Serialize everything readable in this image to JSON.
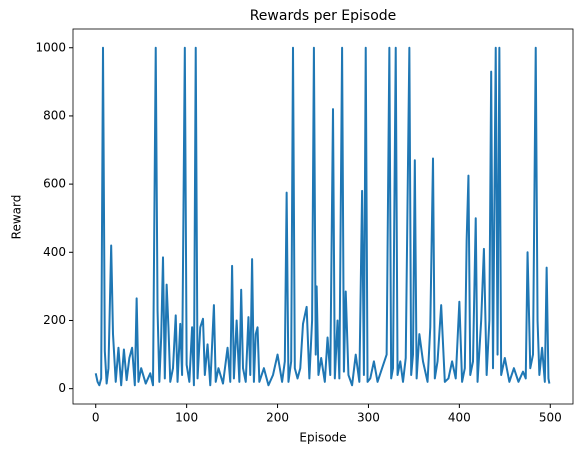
{
  "chart_data": {
    "type": "line",
    "title": "Rewards per Episode",
    "x_label": "Episode",
    "y_label": "Reward",
    "x": [
      0,
      2,
      4,
      6,
      8,
      10,
      12,
      14,
      17,
      19,
      22,
      25,
      28,
      31,
      34,
      37,
      40,
      43,
      45,
      47,
      50,
      55,
      60,
      63,
      66,
      68,
      70,
      72,
      74,
      76,
      78,
      80,
      82,
      85,
      88,
      90,
      93,
      95,
      98,
      100,
      103,
      106,
      108,
      110,
      112,
      115,
      118,
      120,
      123,
      126,
      130,
      132,
      135,
      140,
      145,
      148,
      150,
      152,
      155,
      158,
      160,
      162,
      165,
      168,
      170,
      172,
      174,
      176,
      178,
      180,
      185,
      190,
      195,
      200,
      205,
      208,
      210,
      212,
      215,
      217,
      219,
      222,
      225,
      228,
      232,
      235,
      238,
      240,
      242,
      243,
      245,
      248,
      252,
      255,
      258,
      261,
      263,
      266,
      268,
      271,
      273,
      275,
      278,
      282,
      286,
      290,
      293,
      295,
      297,
      299,
      302,
      306,
      310,
      315,
      320,
      323,
      325,
      327,
      330,
      332,
      335,
      338,
      341,
      345,
      347,
      349,
      351,
      353,
      356,
      360,
      365,
      368,
      371,
      373,
      376,
      380,
      384,
      388,
      392,
      396,
      400,
      403,
      406,
      408,
      410,
      412,
      415,
      418,
      420,
      424,
      427,
      430,
      433,
      435,
      437,
      440,
      442,
      444,
      446,
      450,
      455,
      460,
      465,
      470,
      473,
      475,
      478,
      481,
      484,
      486,
      488,
      491,
      494,
      496,
      498,
      499
    ],
    "series": [
      {
        "name": "Reward",
        "color": "#1f77b4",
        "values": [
          45,
          20,
          10,
          30,
          1000,
          110,
          15,
          60,
          420,
          160,
          20,
          120,
          10,
          115,
          25,
          90,
          120,
          10,
          265,
          20,
          60,
          15,
          45,
          10,
          1000,
          230,
          20,
          150,
          385,
          30,
          305,
          180,
          20,
          60,
          215,
          20,
          190,
          40,
          1000,
          70,
          20,
          180,
          10,
          1000,
          30,
          180,
          205,
          40,
          130,
          10,
          245,
          20,
          60,
          15,
          120,
          20,
          360,
          30,
          200,
          20,
          290,
          60,
          20,
          210,
          40,
          380,
          20,
          160,
          180,
          20,
          60,
          10,
          40,
          100,
          20,
          80,
          575,
          20,
          80,
          1000,
          60,
          30,
          60,
          190,
          240,
          30,
          200,
          1000,
          100,
          300,
          40,
          90,
          20,
          150,
          40,
          820,
          30,
          200,
          30,
          1000,
          50,
          285,
          40,
          10,
          100,
          20,
          580,
          40,
          1000,
          20,
          30,
          80,
          20,
          60,
          100,
          1000,
          30,
          60,
          1000,
          40,
          80,
          20,
          90,
          1000,
          40,
          100,
          670,
          30,
          160,
          80,
          20,
          180,
          675,
          30,
          80,
          245,
          20,
          30,
          80,
          30,
          255,
          20,
          60,
          435,
          625,
          40,
          80,
          500,
          20,
          200,
          410,
          40,
          200,
          930,
          60,
          1000,
          100,
          1000,
          40,
          90,
          20,
          60,
          20,
          50,
          30,
          400,
          60,
          100,
          1000,
          200,
          40,
          120,
          20,
          355,
          30,
          15
        ]
      }
    ],
    "xlim": [
      -25,
      525
    ],
    "ylim": [
      -45,
      1055
    ],
    "xticks": [
      0,
      100,
      200,
      300,
      400,
      500
    ],
    "yticks": [
      0,
      200,
      400,
      600,
      800,
      1000
    ]
  }
}
